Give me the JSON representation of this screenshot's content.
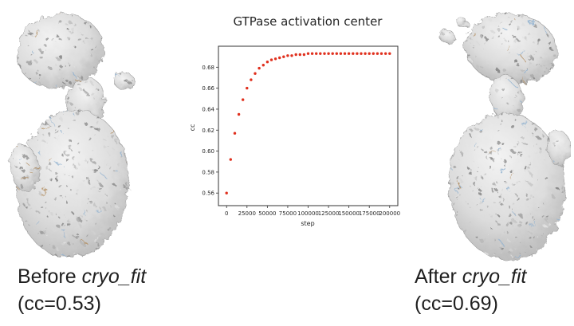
{
  "left_panel": {
    "label_prefix": "Before ",
    "label_italic": "cryo_fit",
    "cc_text": "(cc=0.53)"
  },
  "right_panel": {
    "label_prefix": "After ",
    "label_italic": "cryo_fit",
    "cc_text": "(cc=0.69)"
  },
  "chart_data": {
    "type": "scatter",
    "title": "GTPase activation center",
    "xlabel": "step",
    "ylabel": "cc",
    "xlim": [
      -10000,
      210000
    ],
    "ylim": [
      0.548,
      0.7
    ],
    "grid": false,
    "marker_color": "#e0301e",
    "x_ticks": [
      0,
      25000,
      50000,
      75000,
      100000,
      125000,
      150000,
      175000,
      200000
    ],
    "x_tick_labels": [
      "0",
      "25000",
      "50000",
      "75000",
      "100000",
      "125000",
      "150000",
      "175000",
      "200000"
    ],
    "y_ticks": [
      0.56,
      0.58,
      0.6,
      0.62,
      0.64,
      0.66,
      0.68
    ],
    "y_tick_labels": [
      "0.56",
      "0.58",
      "0.60",
      "0.62",
      "0.64",
      "0.66",
      "0.68"
    ],
    "x": [
      0,
      5000,
      10000,
      15000,
      20000,
      25000,
      30000,
      35000,
      40000,
      45000,
      50000,
      55000,
      60000,
      65000,
      70000,
      75000,
      80000,
      85000,
      90000,
      95000,
      100000,
      105000,
      110000,
      115000,
      120000,
      125000,
      130000,
      135000,
      140000,
      145000,
      150000,
      155000,
      160000,
      165000,
      170000,
      175000,
      180000,
      185000,
      190000,
      195000,
      200000
    ],
    "y": [
      0.56,
      0.592,
      0.617,
      0.635,
      0.649,
      0.66,
      0.668,
      0.674,
      0.679,
      0.682,
      0.685,
      0.687,
      0.688,
      0.689,
      0.69,
      0.691,
      0.691,
      0.692,
      0.692,
      0.692,
      0.693,
      0.693,
      0.693,
      0.693,
      0.693,
      0.693,
      0.693,
      0.693,
      0.693,
      0.693,
      0.693,
      0.693,
      0.693,
      0.693,
      0.693,
      0.693,
      0.693,
      0.693,
      0.693,
      0.693,
      0.693
    ]
  }
}
